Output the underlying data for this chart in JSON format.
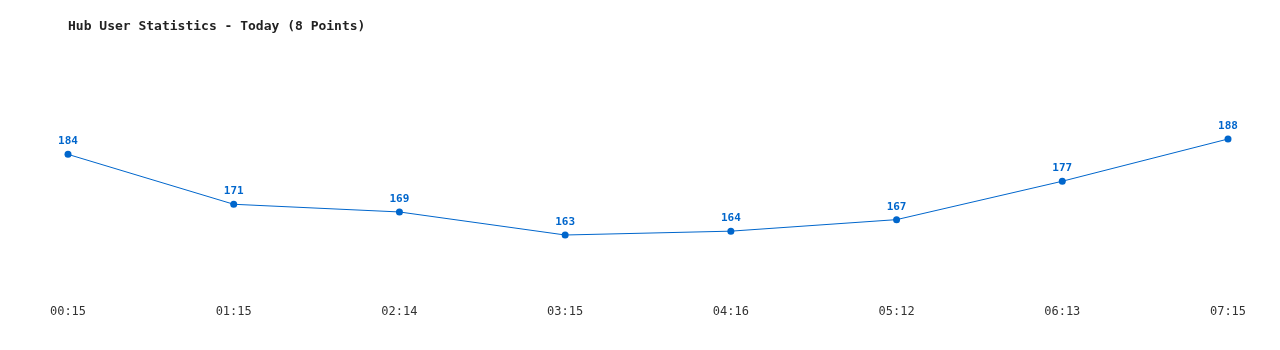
{
  "chart_data": {
    "type": "line",
    "title": "Hub User Statistics - Today (8 Points)",
    "categories": [
      "00:15",
      "01:15",
      "02:14",
      "03:15",
      "04:16",
      "05:12",
      "06:13",
      "07:15"
    ],
    "values": [
      184,
      171,
      169,
      163,
      164,
      167,
      177,
      188
    ],
    "color": "#0066cc",
    "marker": "circle",
    "data_labels": true
  }
}
